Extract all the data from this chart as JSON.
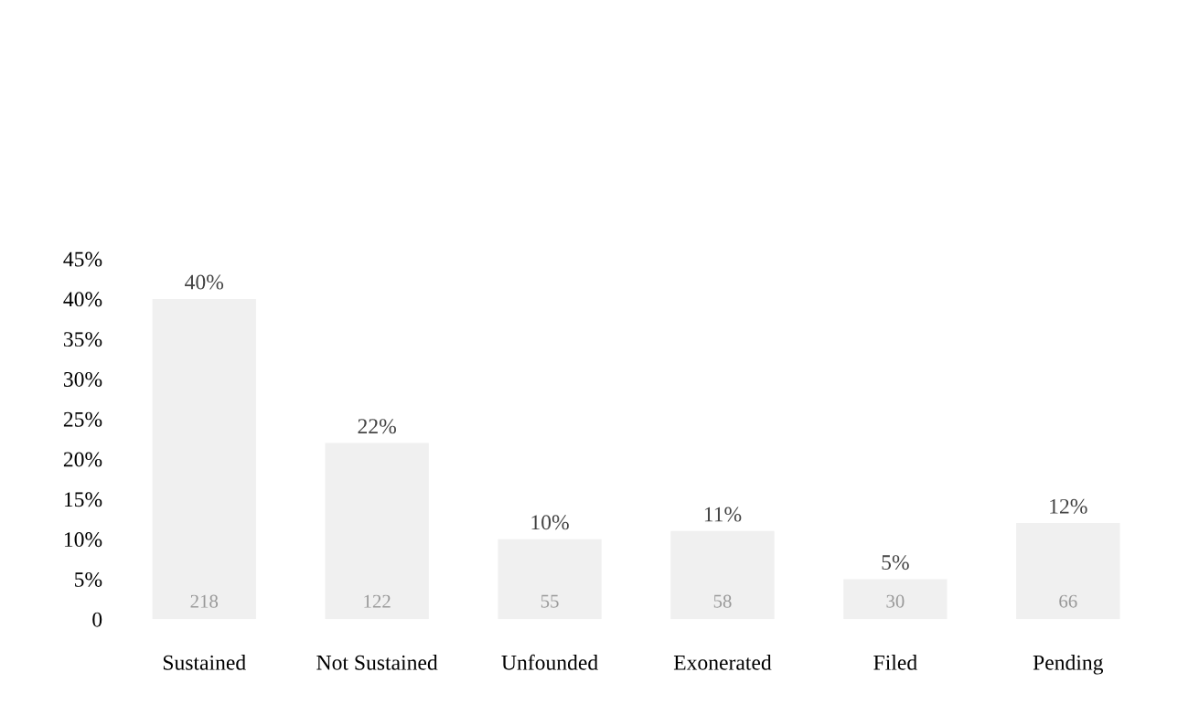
{
  "chart_data": {
    "type": "bar",
    "categories": [
      "Sustained",
      "Not Sustained",
      "Unfounded",
      "Exonerated",
      "Filed",
      "Pending"
    ],
    "values": [
      40,
      22,
      10,
      11,
      5,
      12
    ],
    "value_labels": [
      "40%",
      "22%",
      "10%",
      "11%",
      "5%",
      "12%"
    ],
    "color": "#f0f0f0",
    "ylim": [
      0,
      45
    ],
    "yticks": [
      0,
      {
        "value": 5,
        "label": "5%"
      },
      {
        "value": 10,
        "label": "10%"
      },
      {
        "value": 15,
        "label": "15%"
      },
      {
        "value": 20,
        "label": "20%"
      },
      {
        "value": 25,
        "label": "25%"
      },
      {
        "value": 30,
        "label": "30%"
      },
      {
        "value": 35,
        "label": "35%"
      },
      {
        "value": 40,
        "label": "40%"
      },
      {
        "value": 45,
        "label": "45%"
      }
    ],
    "annotations": [
      {
        "text": "218",
        "x": "Sustained",
        "y": 0
      },
      {
        "text": "122",
        "x": "Not Sustained",
        "y": 0
      },
      {
        "text": "55",
        "x": "Unfounded",
        "y": 0
      },
      {
        "text": "58",
        "x": "Exonerated",
        "y": 0
      },
      {
        "text": "30",
        "x": "Filed",
        "y": 0
      },
      {
        "text": "66",
        "x": "Pending",
        "y": 0
      }
    ],
    "grid": false
  }
}
